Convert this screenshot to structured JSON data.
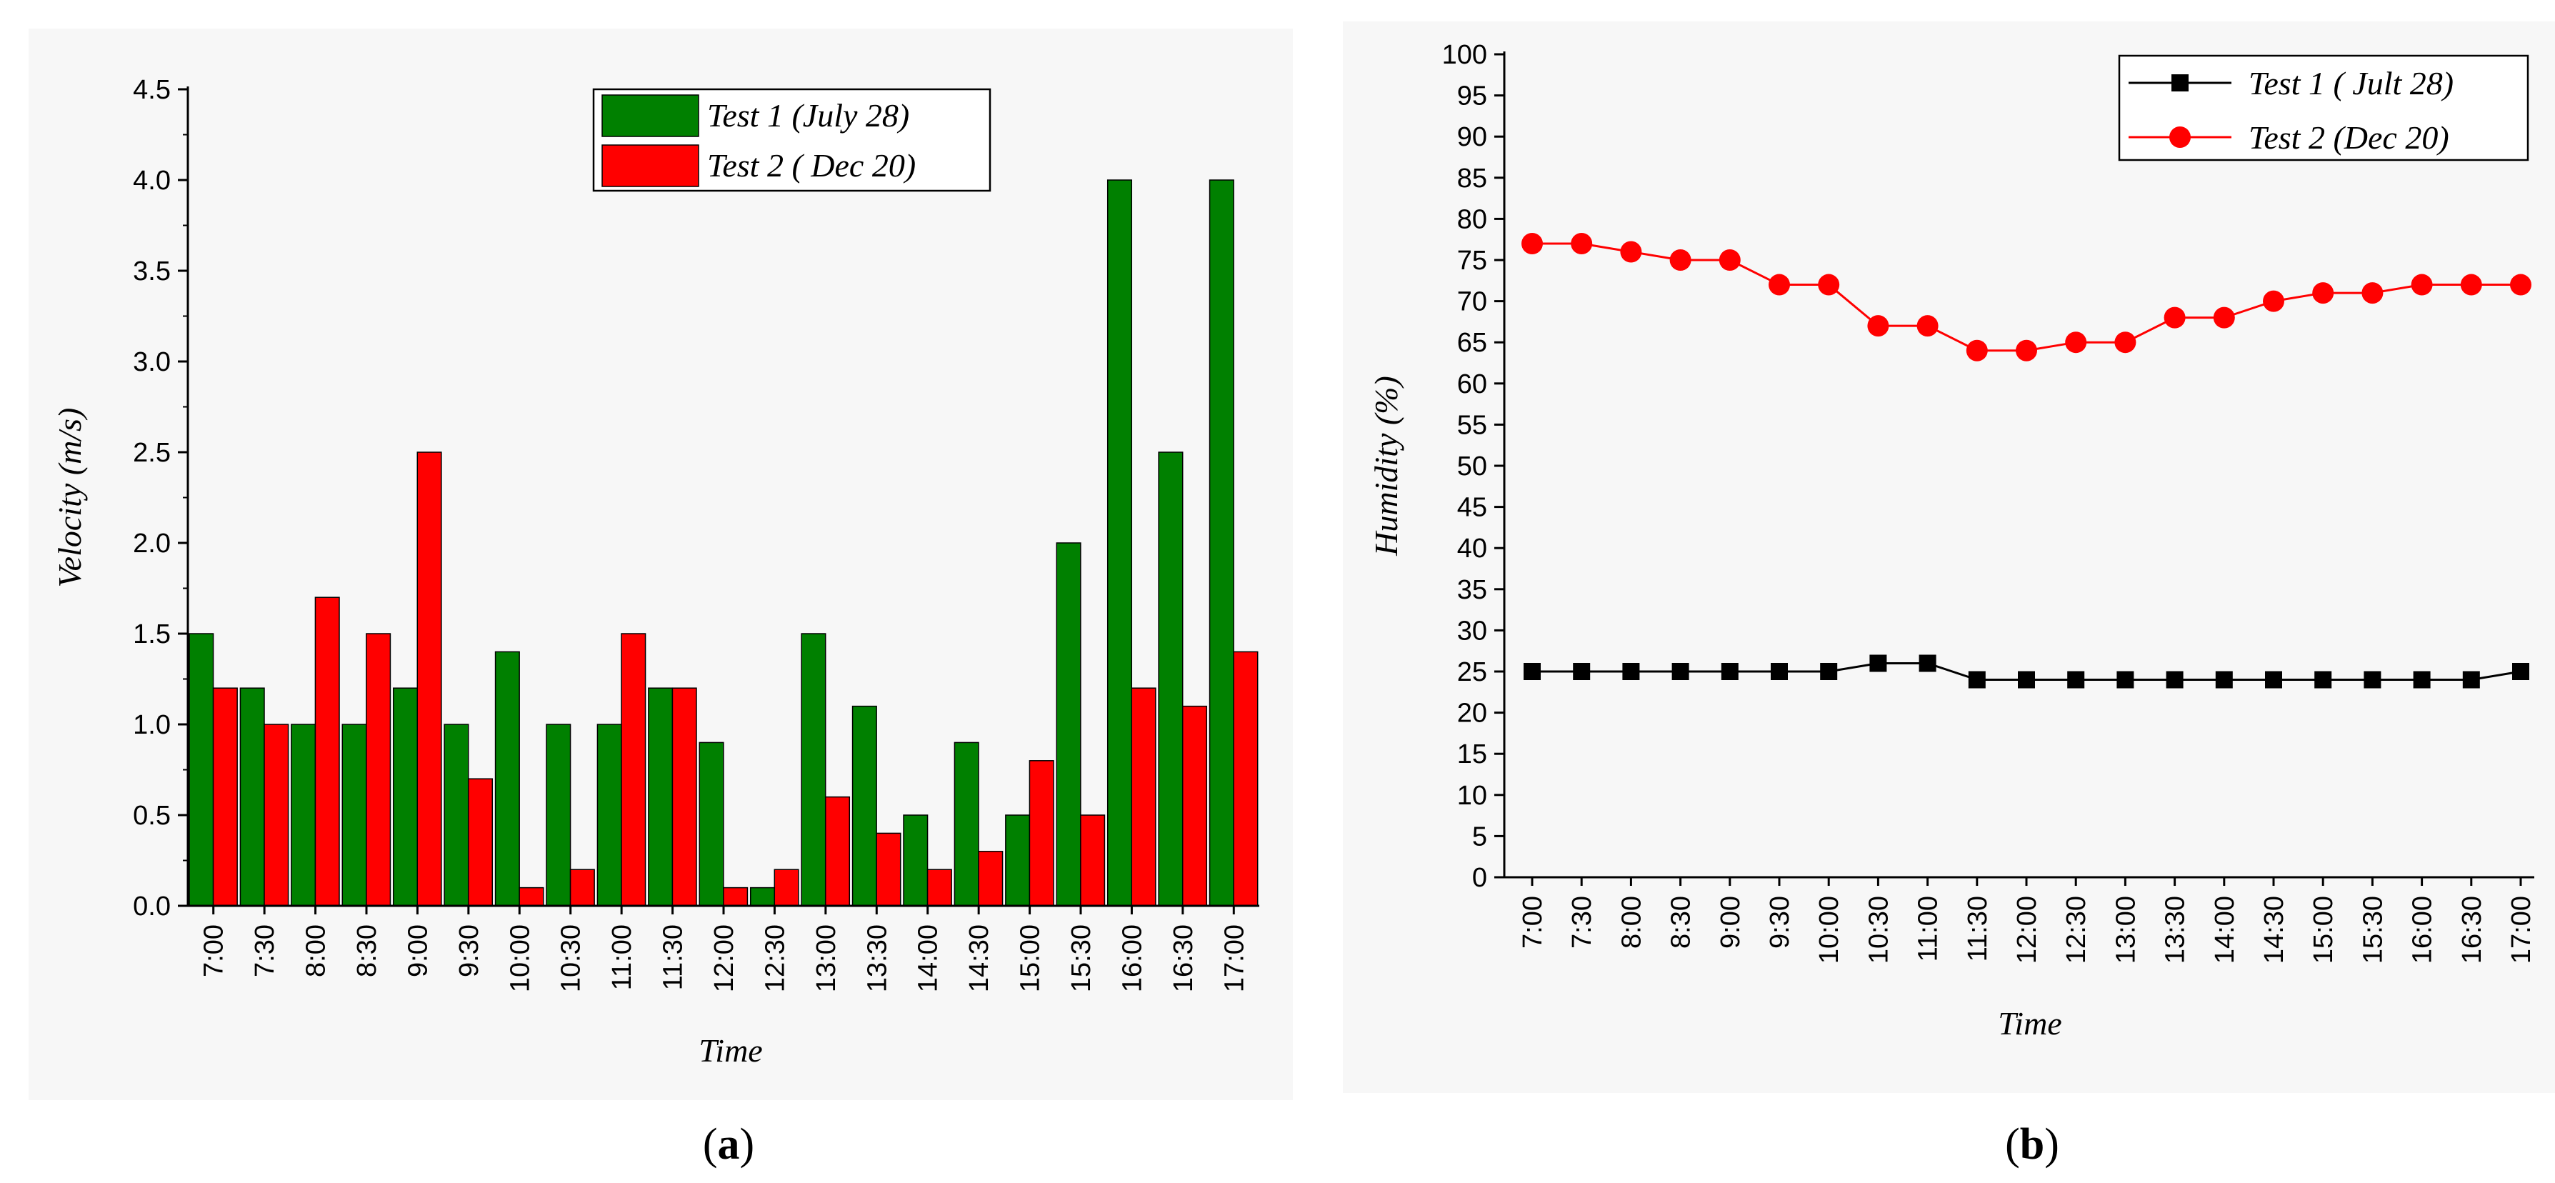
{
  "chart_data": [
    {
      "type": "bar",
      "title": "",
      "caption_open": "(",
      "caption_letter": "a",
      "caption_close": ")",
      "xlabel": "Time",
      "ylabel": "Velocity (m/s)",
      "ylim": [
        0,
        4.5
      ],
      "yticks": [
        "0.0",
        "0.5",
        "1.0",
        "1.5",
        "2.0",
        "2.5",
        "3.0",
        "3.5",
        "4.0",
        "4.5"
      ],
      "legend_position": "top-right",
      "categories": [
        "7:00",
        "7:30",
        "8:00",
        "8:30",
        "9:00",
        "9:30",
        "10:00",
        "10:30",
        "11:00",
        "11:30",
        "12:00",
        "12:30",
        "13:00",
        "13:30",
        "14:00",
        "14:30",
        "15:00",
        "15:30",
        "16:00",
        "16:30",
        "17:00"
      ],
      "series": [
        {
          "name": "Test 1 (July 28)",
          "color": "#008000",
          "values": [
            1.5,
            1.2,
            1.0,
            1.0,
            1.2,
            1.0,
            1.4,
            1.0,
            1.0,
            1.2,
            0.9,
            0.1,
            1.5,
            1.1,
            0.5,
            0.9,
            0.5,
            2.0,
            4.0,
            2.5,
            4.0
          ]
        },
        {
          "name": "Test 2 ( Dec 20)",
          "color": "#ff0000",
          "values": [
            1.2,
            1.0,
            1.7,
            1.5,
            2.5,
            0.7,
            0.1,
            0.2,
            1.5,
            1.2,
            0.1,
            0.2,
            0.6,
            0.4,
            0.2,
            0.3,
            0.8,
            0.5,
            1.2,
            1.1,
            1.4
          ]
        }
      ]
    },
    {
      "type": "line",
      "title": "",
      "caption_open": "(",
      "caption_letter": "b",
      "caption_close": ")",
      "xlabel": "Time",
      "ylabel": "Humidity (%)",
      "ylim": [
        0,
        100
      ],
      "yticks": [
        "0",
        "5",
        "10",
        "15",
        "20",
        "25",
        "30",
        "35",
        "40",
        "45",
        "50",
        "55",
        "60",
        "65",
        "70",
        "75",
        "80",
        "85",
        "90",
        "95",
        "100"
      ],
      "legend_position": "top-right",
      "categories": [
        "7:00",
        "7:30",
        "8:00",
        "8:30",
        "9:00",
        "9:30",
        "10:00",
        "10:30",
        "11:00",
        "11:30",
        "12:00",
        "12:30",
        "13:00",
        "13:30",
        "14:00",
        "14:30",
        "15:00",
        "15:30",
        "16:00",
        "16:30",
        "17:00"
      ],
      "series": [
        {
          "name": "Test 1 ( Jult 28)",
          "color": "#000000",
          "marker": "square",
          "values": [
            25,
            25,
            25,
            25,
            25,
            25,
            25,
            26,
            26,
            24,
            24,
            24,
            24,
            24,
            24,
            24,
            24,
            24,
            24,
            24,
            25
          ]
        },
        {
          "name": "Test 2 (Dec 20)",
          "color": "#ff0000",
          "marker": "circle",
          "values": [
            77,
            77,
            76,
            75,
            75,
            72,
            72,
            67,
            67,
            64,
            64,
            65,
            65,
            68,
            68,
            70,
            71,
            71,
            72,
            72,
            72
          ]
        }
      ]
    }
  ]
}
